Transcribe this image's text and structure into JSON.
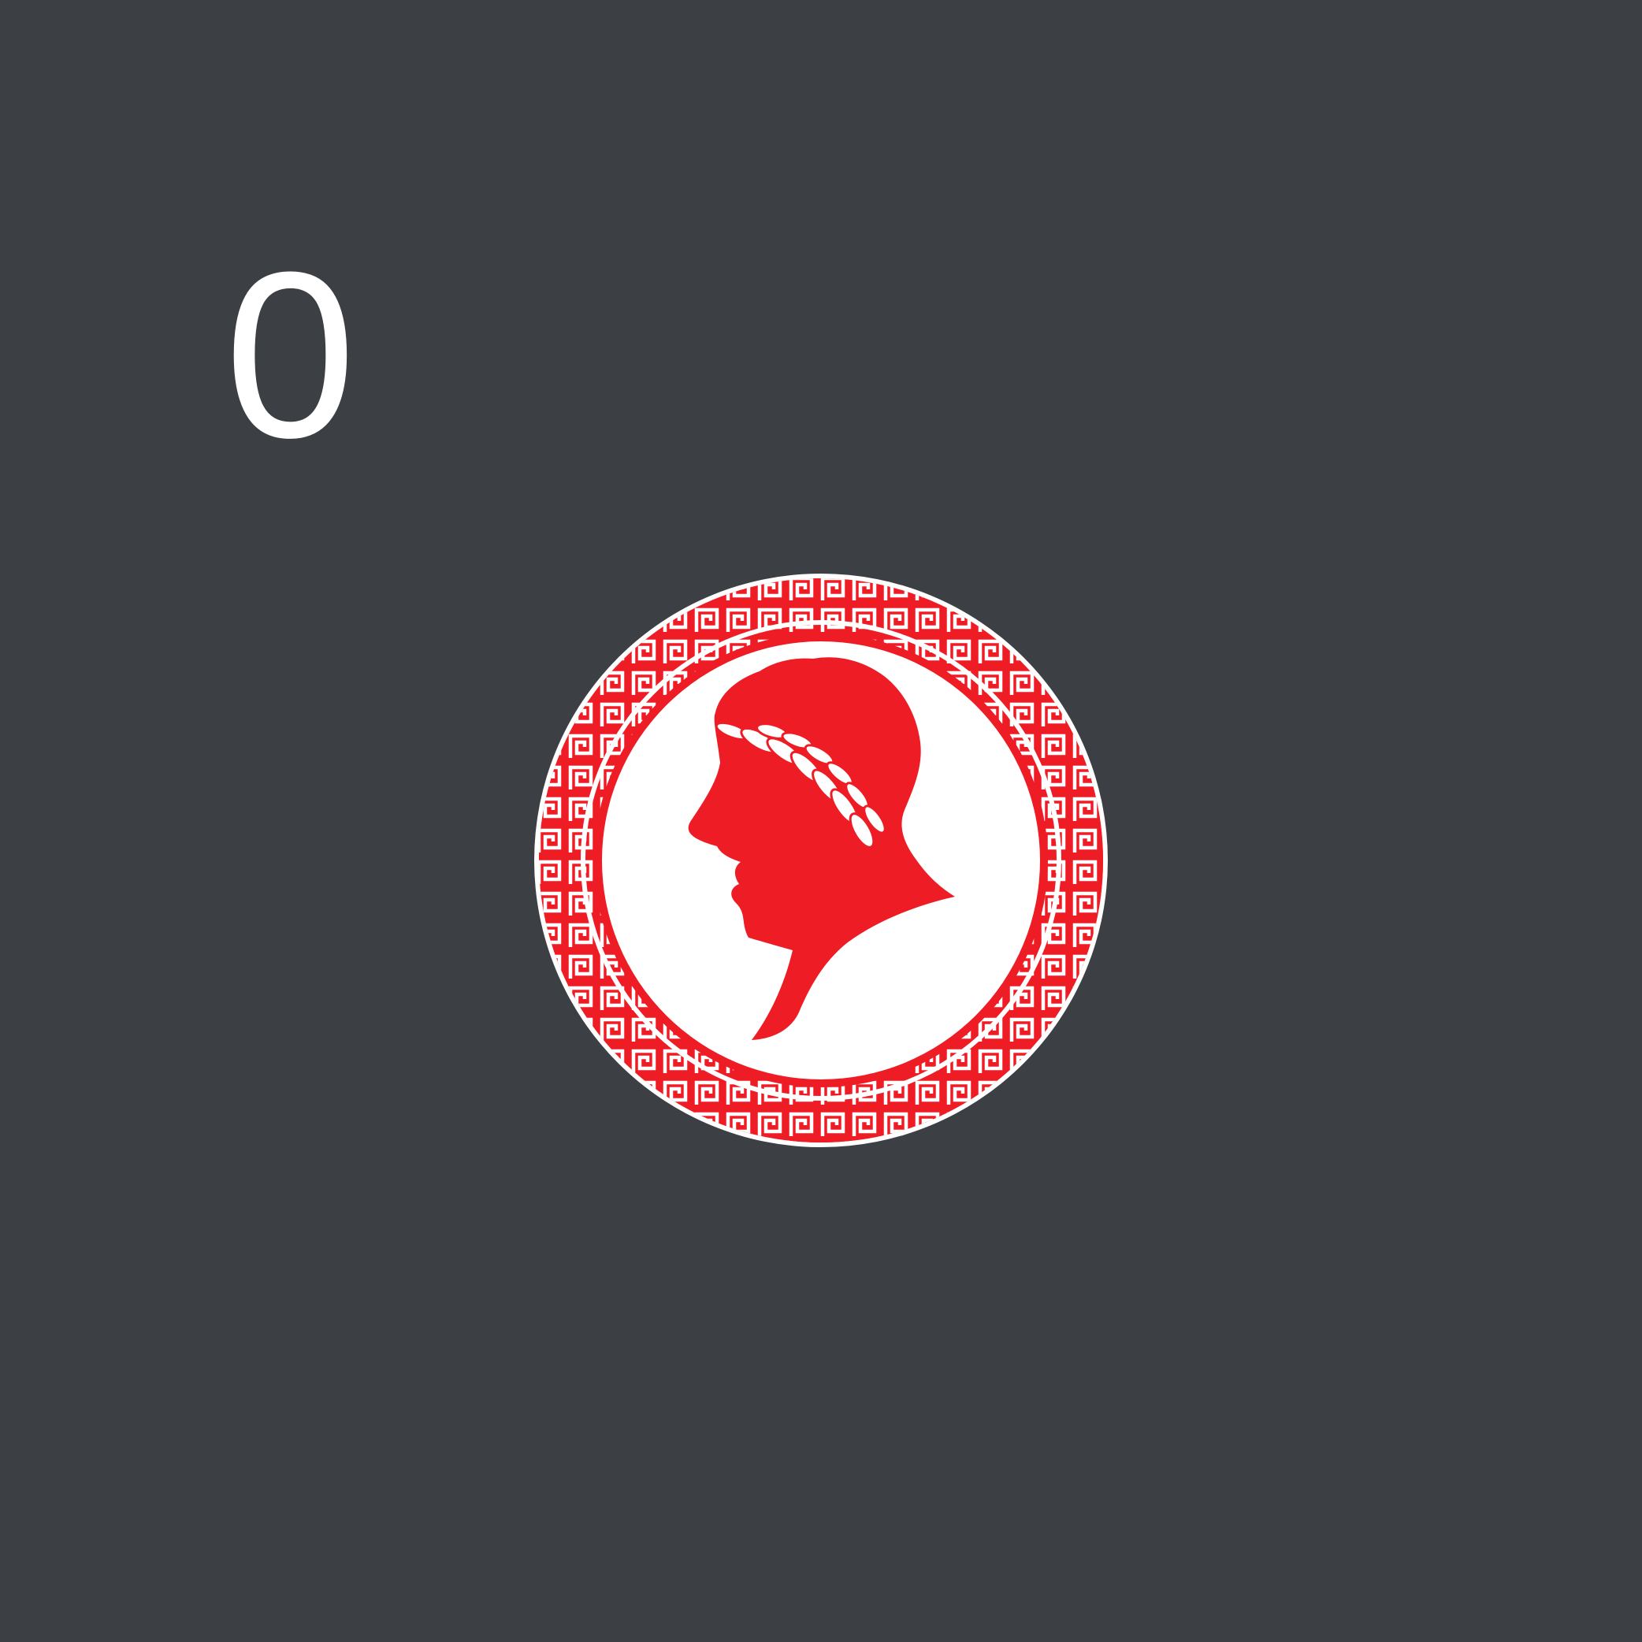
{
  "counter": {
    "value": "0"
  },
  "emblem": {
    "icon": "laurel-profile-medallion-icon",
    "colors": {
      "background": "#3c3f43",
      "primary": "#ee1c24",
      "secondary": "#ffffff"
    }
  }
}
